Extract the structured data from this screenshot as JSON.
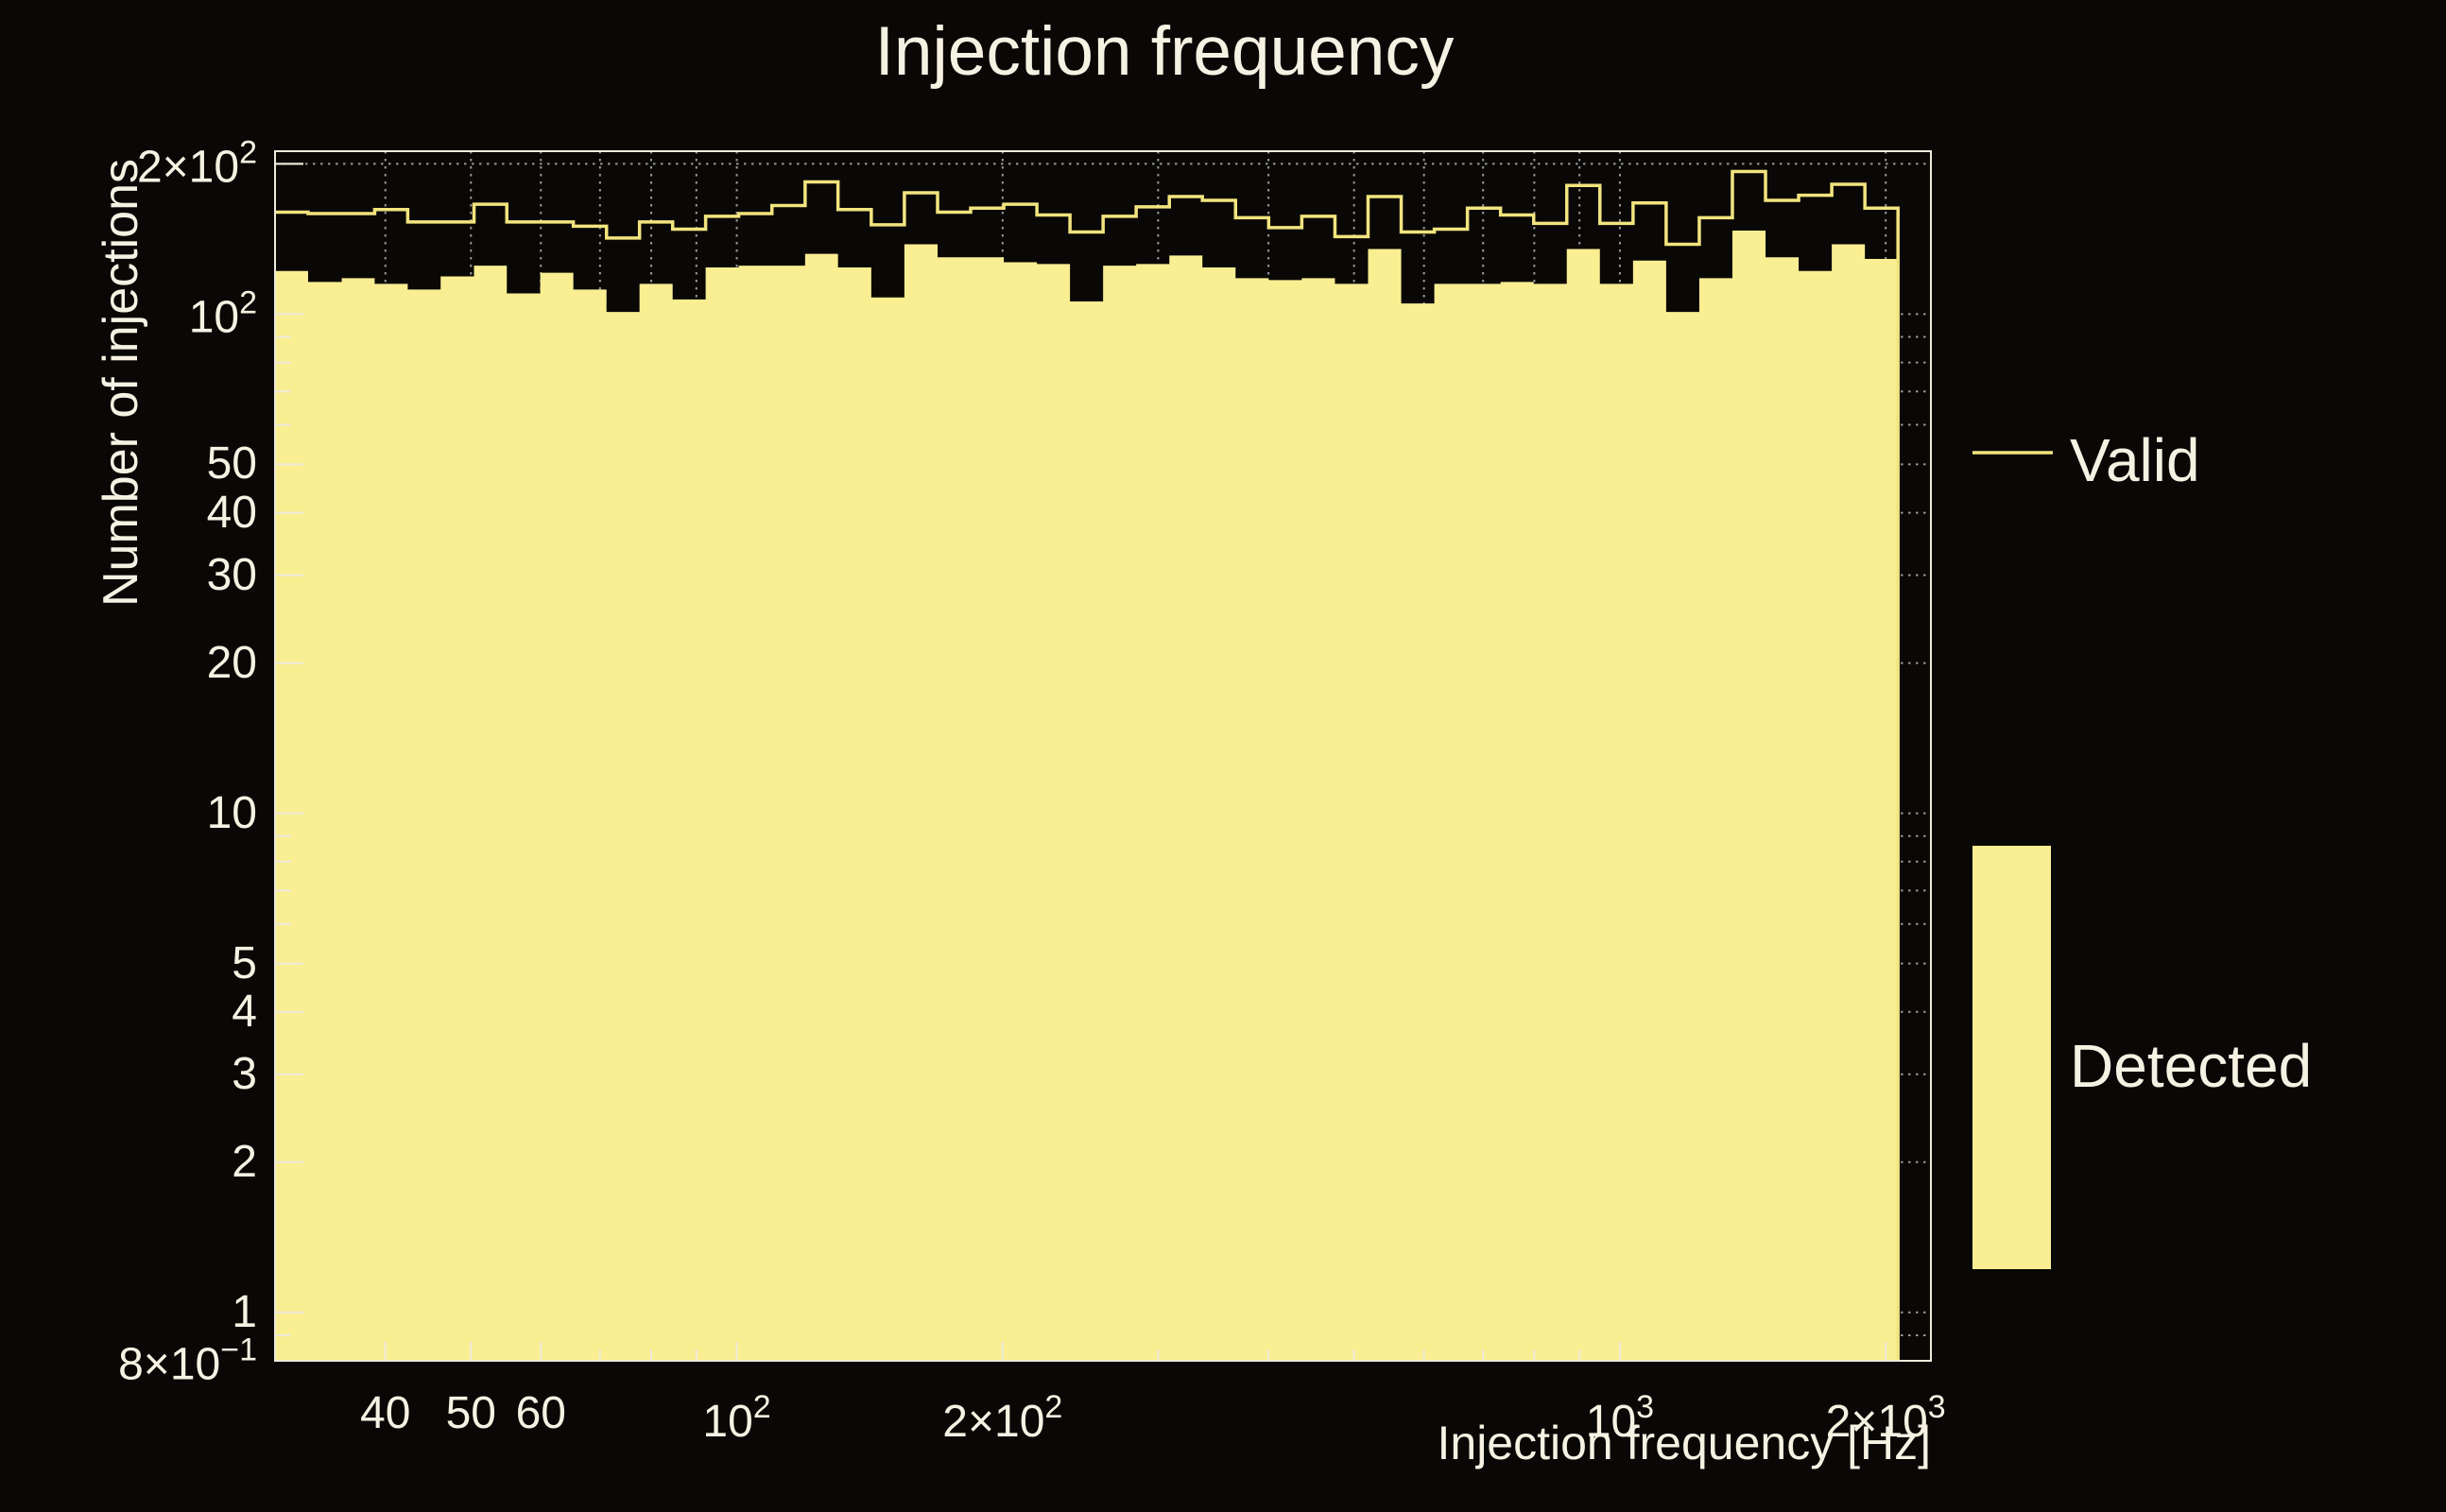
{
  "title": "Injection frequency",
  "colors": {
    "background": "#0a0806",
    "fill_yellow": "#f9ee92",
    "line_yellow": "#f2e47e",
    "text_cream": "#f6f2e3",
    "frame": "#efeadb",
    "grid": "#989898"
  },
  "legend": {
    "entries": [
      {
        "label": "Valid",
        "marker": "line"
      },
      {
        "label": "Detected",
        "marker": "fill"
      }
    ]
  },
  "chart_data": {
    "type": "bar",
    "subtype": "overlaid-log-histograms",
    "title": "Injection frequency",
    "xlabel": "Injection frequency [Hz]",
    "ylabel": "Number of injections",
    "xscale": "log",
    "yscale": "log",
    "xlim": [
      30,
      2250
    ],
    "ylim": [
      0.8,
      212
    ],
    "grid": "dotted",
    "legend_position": "right",
    "bin_edges_hz": [
      30.0,
      32.7,
      35.7,
      38.9,
      42.4,
      46.2,
      50.4,
      54.9,
      59.9,
      65.3,
      71.2,
      77.6,
      84.6,
      92.2,
      100.5,
      109.6,
      119.5,
      130.2,
      142.0,
      154.8,
      168.8,
      184.0,
      200.6,
      218.7,
      238.4,
      259.9,
      283.3,
      308.9,
      336.7,
      367.1,
      400.2,
      436.3,
      475.7,
      518.6,
      565.4,
      616.4,
      672.0,
      732.6,
      798.7,
      870.7,
      949.2,
      1034.9,
      1128.2,
      1230.0,
      1340.9,
      1461.9,
      1593.7,
      1737.5,
      1894.2,
      2065.0
    ],
    "series": [
      {
        "name": "Valid",
        "style": "step-line",
        "values": [
          160,
          159,
          159,
          162,
          153,
          153,
          166,
          153,
          153,
          150,
          142,
          153,
          148,
          157,
          159,
          165,
          184,
          162,
          151,
          175,
          160,
          163,
          166,
          158,
          146,
          157,
          164,
          172,
          169,
          156,
          149,
          157,
          143,
          172,
          146,
          148,
          163,
          158,
          152,
          181,
          152,
          167,
          138,
          156,
          193,
          169,
          173,
          182,
          163
        ]
      },
      {
        "name": "Detected",
        "style": "filled",
        "values": [
          122,
          116,
          118,
          115,
          112,
          119,
          125,
          110,
          121,
          112,
          101,
          115,
          107,
          124,
          125,
          125,
          132,
          124,
          108,
          138,
          130,
          130,
          127,
          126,
          106,
          125,
          126,
          131,
          124,
          118,
          117,
          118,
          115,
          135,
          105,
          115,
          115,
          116,
          115,
          135,
          115,
          128,
          101,
          118,
          147,
          130,
          122,
          138,
          129
        ]
      }
    ],
    "x_tick_labels": [
      {
        "v": 40,
        "base": "40"
      },
      {
        "v": 50,
        "base": "50"
      },
      {
        "v": 60,
        "base": "60"
      },
      {
        "v": 100,
        "base": "10",
        "sup": "2"
      },
      {
        "v": 200,
        "base": "2×10",
        "sup": "2"
      },
      {
        "v": 1000,
        "base": "10",
        "sup": "3"
      },
      {
        "v": 2000,
        "base": "2×10",
        "sup": "3"
      }
    ],
    "y_tick_labels": [
      {
        "v": 200,
        "base": "2×10",
        "sup": "2"
      },
      {
        "v": 100,
        "base": "10",
        "sup": "2"
      },
      {
        "v": 50,
        "base": "50"
      },
      {
        "v": 40,
        "base": "40"
      },
      {
        "v": 30,
        "base": "30"
      },
      {
        "v": 20,
        "base": "20"
      },
      {
        "v": 10,
        "base": "10"
      },
      {
        "v": 5,
        "base": "5"
      },
      {
        "v": 4,
        "base": "4"
      },
      {
        "v": 3,
        "base": "3"
      },
      {
        "v": 2,
        "base": "2"
      },
      {
        "v": 1,
        "base": "1"
      },
      {
        "v": 0.8,
        "base": "8×10",
        "sup": "−1"
      }
    ],
    "x_grid_values": [
      40,
      50,
      60,
      70,
      80,
      90,
      100,
      200,
      300,
      400,
      500,
      600,
      700,
      800,
      900,
      1000,
      2000
    ],
    "y_grid_values": [
      0.9,
      1,
      2,
      3,
      4,
      5,
      6,
      7,
      8,
      9,
      10,
      20,
      30,
      40,
      50,
      60,
      70,
      80,
      90,
      100,
      200
    ]
  }
}
